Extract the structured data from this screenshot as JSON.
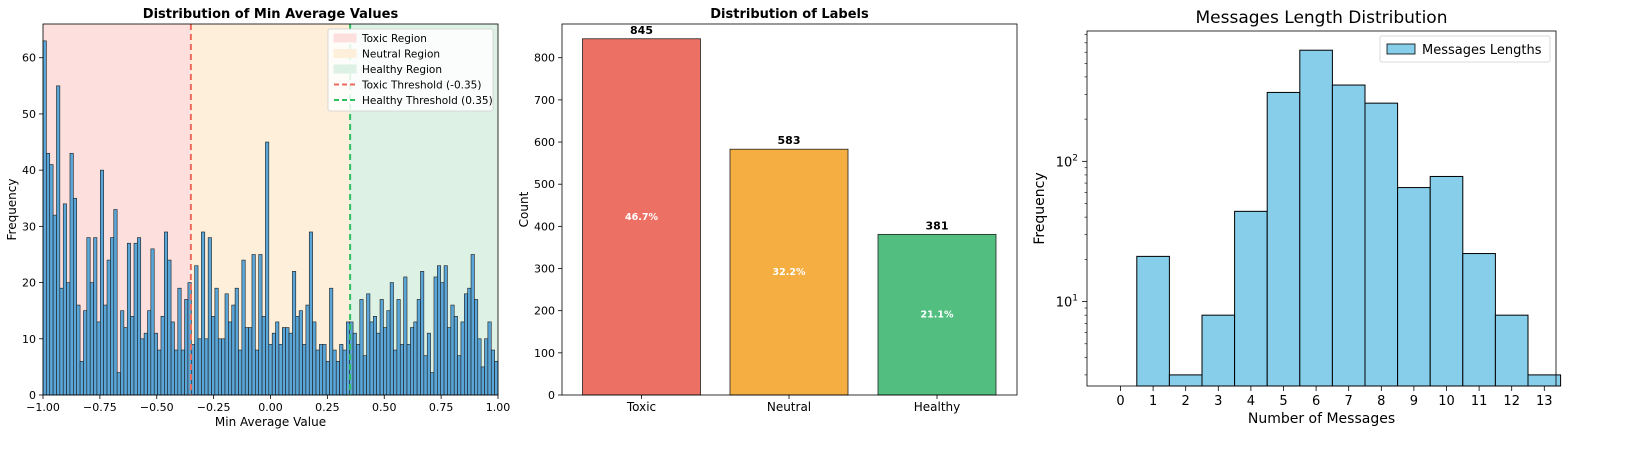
{
  "chart_data": [
    {
      "type": "bar",
      "subtype": "histogram",
      "title": "Distribution of Min Average Values",
      "xlabel": "Min Average Value",
      "ylabel": "Frequency",
      "xlim": [
        -1.0,
        1.0
      ],
      "ylim": [
        0,
        66
      ],
      "xticks": [
        "−1.00",
        "−0.75",
        "−0.50",
        "−0.25",
        "0.00",
        "0.25",
        "0.50",
        "0.75",
        "1.00"
      ],
      "yticks": [
        "0",
        "10",
        "20",
        "30",
        "40",
        "50",
        "60"
      ],
      "bar_color": "#5aa6d8",
      "bin_start": -1.0,
      "bin_width": 0.02,
      "values": [
        63,
        43,
        41,
        32,
        55,
        19,
        34,
        20,
        43,
        35,
        16,
        6,
        15,
        28,
        20,
        28,
        13,
        40,
        16,
        24,
        28,
        33,
        4,
        15,
        12,
        27,
        14,
        27,
        28,
        10,
        11,
        15,
        26,
        11,
        8,
        14,
        29,
        24,
        13,
        8,
        19,
        8,
        17,
        20,
        9,
        23,
        10,
        29,
        10,
        28,
        14,
        19,
        10,
        10,
        18,
        13,
        16,
        19,
        8,
        24,
        12,
        12,
        25,
        8,
        25,
        14,
        45,
        9,
        11,
        13,
        9,
        12,
        12,
        11,
        22,
        14,
        15,
        9,
        16,
        29,
        13,
        8,
        9,
        9,
        6,
        19,
        8,
        6,
        9,
        8,
        13,
        13,
        11,
        9,
        17,
        7,
        18,
        13,
        14,
        11,
        17,
        12,
        15,
        20,
        8,
        17,
        9,
        21,
        9,
        12,
        13,
        17,
        22,
        7,
        11,
        4,
        21,
        23,
        20,
        23,
        12,
        16,
        14,
        7,
        13,
        18,
        19,
        25,
        17,
        10,
        5,
        10,
        13,
        8,
        6
      ],
      "regions": [
        {
          "name": "Toxic Region",
          "from": -1.0,
          "to": -0.35,
          "color": "#fde0dd"
        },
        {
          "name": "Neutral Region",
          "from": -0.35,
          "to": 0.35,
          "color": "#fdefd9"
        },
        {
          "name": "Healthy Region",
          "from": 0.35,
          "to": 1.0,
          "color": "#ddf1e4"
        }
      ],
      "thresholds": [
        {
          "name": "Toxic Threshold (-0.35)",
          "value": -0.35,
          "color": "#ec6b5d"
        },
        {
          "name": "Healthy Threshold (0.35)",
          "value": 0.35,
          "color": "#2fbf5f"
        }
      ],
      "legend_position": "top-right",
      "grid": false
    },
    {
      "type": "bar",
      "title": "Distribution of Labels",
      "xlabel": "",
      "ylabel": "Count",
      "categories": [
        "Toxic",
        "Neutral",
        "Healthy"
      ],
      "values": [
        845,
        583,
        381
      ],
      "value_labels": [
        "845",
        "583",
        "381"
      ],
      "percent_labels": [
        "46.7%",
        "32.2%",
        "21.1%"
      ],
      "colors": [
        "#ec7063",
        "#f5ae41",
        "#52be80"
      ],
      "ylim": [
        0,
        880
      ],
      "yticks": [
        "0",
        "100",
        "200",
        "300",
        "400",
        "500",
        "600",
        "700",
        "800"
      ],
      "grid": false
    },
    {
      "type": "bar",
      "subtype": "histogram",
      "title": "Messages Length Distribution",
      "xlabel": "Number of Messages",
      "ylabel": "Frequency",
      "yscale": "log",
      "ylim": [
        2.5,
        850
      ],
      "xticks": [
        "0",
        "1",
        "2",
        "3",
        "4",
        "5",
        "6",
        "7",
        "8",
        "9",
        "10",
        "11",
        "12",
        "13"
      ],
      "ytick_base": "10",
      "ytick_exponents": [
        "1",
        "2"
      ],
      "categories": [
        1,
        2,
        3,
        4,
        5,
        6,
        7,
        8,
        9,
        10,
        11,
        12,
        13
      ],
      "values": [
        21,
        3,
        8,
        44,
        310,
        620,
        350,
        260,
        65,
        78,
        22,
        8,
        3
      ],
      "bar_color": "#87ceeb",
      "legend": [
        "Messages Lengths"
      ],
      "legend_position": "top-right",
      "grid": false
    }
  ]
}
